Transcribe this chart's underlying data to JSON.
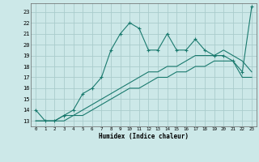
{
  "xlabel": "Humidex (Indice chaleur)",
  "x": [
    0,
    1,
    2,
    3,
    4,
    5,
    6,
    7,
    8,
    9,
    10,
    11,
    12,
    13,
    14,
    15,
    16,
    17,
    18,
    19,
    20,
    21,
    22,
    23
  ],
  "line1_y": [
    14,
    13,
    13,
    13.5,
    14,
    15.5,
    16,
    17,
    19.5,
    21,
    22,
    21.5,
    19.5,
    19.5,
    21,
    19.5,
    19.5,
    20.5,
    19.5,
    19,
    19,
    18.5,
    17.5,
    23.5
  ],
  "line2_y": [
    13,
    13,
    13,
    13.5,
    13.5,
    14,
    14.5,
    15,
    15.5,
    16,
    16.5,
    17,
    17.5,
    17.5,
    18,
    18,
    18.5,
    19,
    19,
    19,
    19.5,
    19,
    18.5,
    17.5
  ],
  "line3_y": [
    13,
    13,
    13,
    13,
    13.5,
    13.5,
    14,
    14.5,
    15,
    15.5,
    16,
    16,
    16.5,
    17,
    17,
    17.5,
    17.5,
    18,
    18,
    18.5,
    18.5,
    18.5,
    17,
    17
  ],
  "color": "#1a7a6e",
  "bg_color": "#cce8e8",
  "grid_color": "#aacccc",
  "ylim_min": 12.5,
  "ylim_max": 23.8,
  "xlim_min": -0.5,
  "xlim_max": 23.5,
  "yticks": [
    13,
    14,
    15,
    16,
    17,
    18,
    19,
    20,
    21,
    22,
    23
  ],
  "xticks": [
    0,
    1,
    2,
    3,
    4,
    5,
    6,
    7,
    8,
    9,
    10,
    11,
    12,
    13,
    14,
    15,
    16,
    17,
    18,
    19,
    20,
    21,
    22,
    23
  ]
}
